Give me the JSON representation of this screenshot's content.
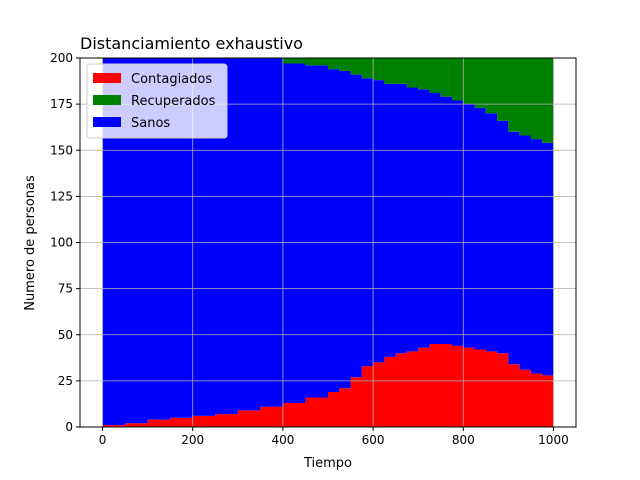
{
  "chart_data": {
    "type": "area",
    "stacked": true,
    "title": "Distanciamiento exhaustivo",
    "xlabel": "Tiempo",
    "ylabel": "Numero de personas",
    "xlim": [
      -50,
      1050
    ],
    "ylim": [
      0,
      200
    ],
    "xticks": [
      0,
      200,
      400,
      600,
      800,
      1000
    ],
    "yticks": [
      0,
      25,
      50,
      75,
      100,
      125,
      150,
      175,
      200
    ],
    "grid": true,
    "legend": "top-left",
    "series": [
      {
        "name": "Contagiados",
        "color": "#ff0000",
        "x": [
          0,
          50,
          100,
          150,
          200,
          250,
          300,
          350,
          400,
          450,
          500,
          525,
          550,
          575,
          600,
          625,
          650,
          675,
          700,
          725,
          750,
          775,
          800,
          825,
          850,
          875,
          900,
          925,
          950,
          975,
          1000
        ],
        "y": [
          1,
          2,
          4,
          5,
          6,
          7,
          9,
          11,
          13,
          16,
          19,
          21,
          27,
          33,
          35,
          38,
          40,
          41,
          43,
          45,
          45,
          44,
          43,
          42,
          41,
          40,
          34,
          31,
          29,
          28,
          25
        ]
      },
      {
        "name": "Sanos",
        "color": "#0000ff",
        "x": [
          0,
          50,
          100,
          150,
          200,
          250,
          300,
          350,
          400,
          450,
          500,
          525,
          550,
          575,
          600,
          625,
          650,
          675,
          700,
          725,
          750,
          775,
          800,
          825,
          850,
          875,
          900,
          925,
          950,
          975,
          1000
        ],
        "y": [
          199,
          198,
          196,
          195,
          194,
          193,
          191,
          189,
          184,
          180,
          175,
          172,
          164,
          156,
          153,
          148,
          146,
          143,
          140,
          136,
          134,
          133,
          132,
          131,
          129,
          126,
          126,
          127,
          127,
          126,
          125
        ]
      },
      {
        "name": "Recuperados",
        "color": "#008000",
        "x": [
          0,
          50,
          100,
          150,
          200,
          250,
          300,
          350,
          400,
          450,
          500,
          525,
          550,
          575,
          600,
          625,
          650,
          675,
          700,
          725,
          750,
          775,
          800,
          825,
          850,
          875,
          900,
          925,
          950,
          975,
          1000
        ],
        "y": [
          0,
          0,
          0,
          0,
          0,
          0,
          0,
          0,
          3,
          4,
          6,
          7,
          9,
          11,
          12,
          14,
          14,
          16,
          17,
          19,
          21,
          23,
          25,
          27,
          30,
          34,
          40,
          42,
          44,
          46,
          50
        ]
      }
    ],
    "legend_order": [
      "Contagiados",
      "Recuperados",
      "Sanos"
    ]
  }
}
